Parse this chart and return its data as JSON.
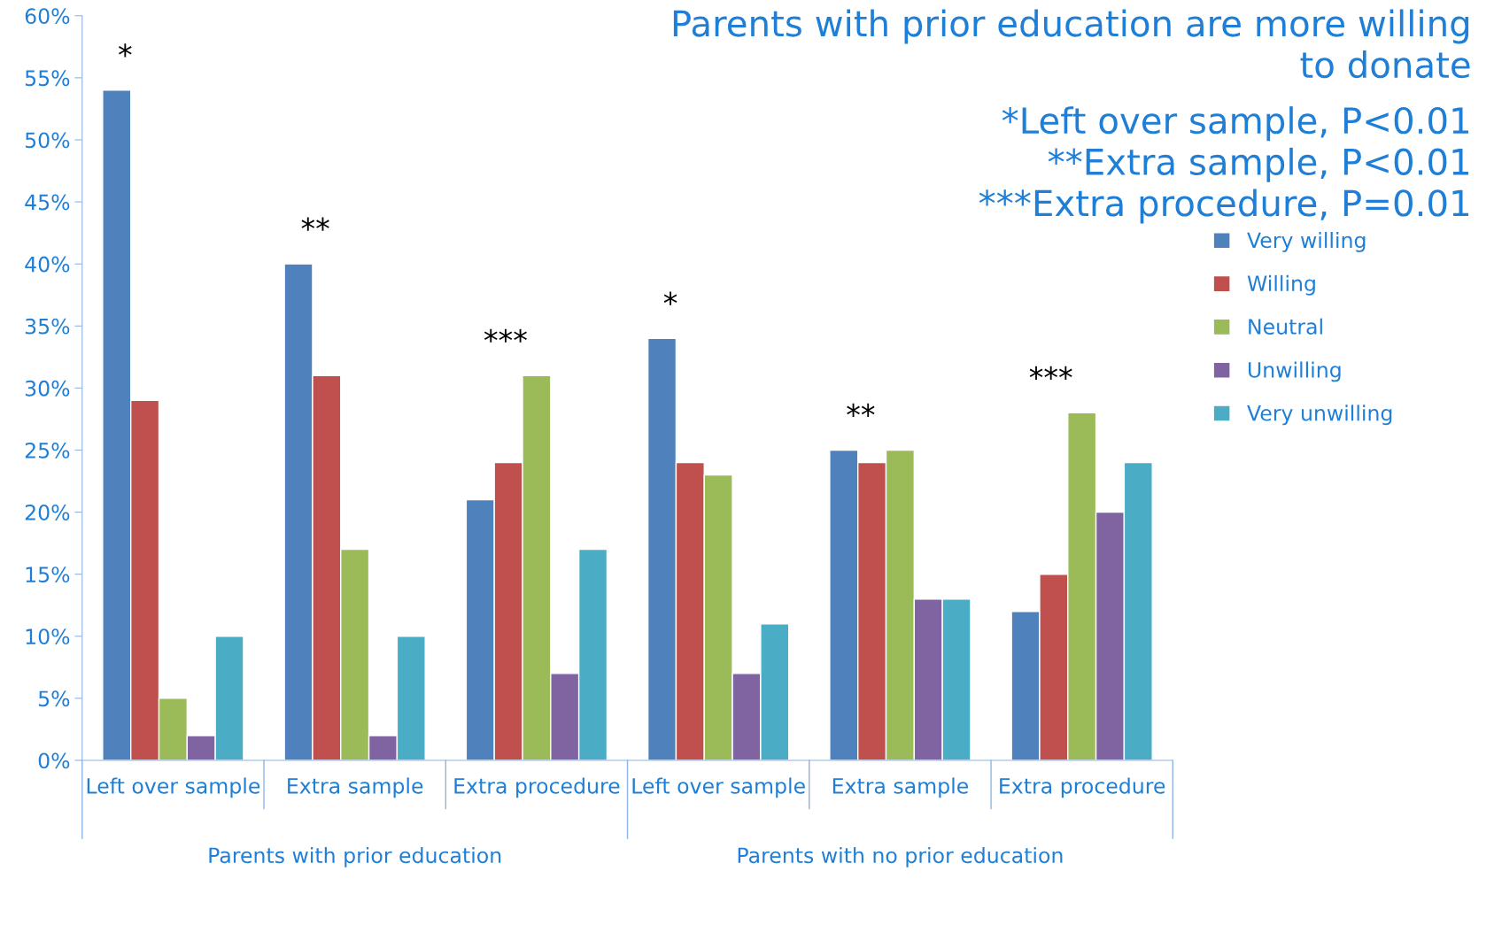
{
  "chart_data": {
    "type": "bar",
    "title": "Parents with prior education are more willing\nto donate",
    "subtitle": "*Left over sample, P<0.01\n**Extra sample, P<0.01\n***Extra procedure, P=0.01",
    "categories": [
      "Left over sample",
      "Extra sample",
      "Extra procedure",
      "Left over sample",
      "Extra sample",
      "Extra procedure"
    ],
    "series": [
      {
        "name": "Very willing",
        "color": "#4f81bd",
        "values": [
          54,
          40,
          21,
          34,
          25,
          12
        ]
      },
      {
        "name": "Willing",
        "color": "#c0504d",
        "values": [
          29,
          31,
          24,
          24,
          24,
          15
        ]
      },
      {
        "name": "Neutral",
        "color": "#9bbb59",
        "values": [
          5,
          17,
          31,
          23,
          25,
          28
        ]
      },
      {
        "name": "Unwilling",
        "color": "#8064a2",
        "values": [
          2,
          2,
          7,
          7,
          13,
          20
        ]
      },
      {
        "name": "Very unwilling",
        "color": "#4bacc6",
        "values": [
          10,
          10,
          17,
          11,
          13,
          24
        ]
      }
    ],
    "annotations": [
      "*",
      "**",
      "***",
      "*",
      "**",
      "***",
      "Parents with prior education",
      "Parents with no prior education"
    ],
    "ylim": [
      0,
      60
    ],
    "yticks": [
      {
        "value": 0,
        "label": "0%"
      },
      {
        "value": 5,
        "label": "5%"
      },
      {
        "value": 10,
        "label": "10%"
      },
      {
        "value": 15,
        "label": "15%"
      },
      {
        "value": 20,
        "label": "20%"
      },
      {
        "value": 25,
        "label": "25%"
      },
      {
        "value": 30,
        "label": "30%"
      },
      {
        "value": 35,
        "label": "35%"
      },
      {
        "value": 40,
        "label": "40%"
      },
      {
        "value": 45,
        "label": "45%"
      },
      {
        "value": 50,
        "label": "50%"
      },
      {
        "value": 55,
        "label": "55%"
      },
      {
        "value": 60,
        "label": "60%"
      }
    ],
    "grid": false,
    "legend": "right"
  }
}
